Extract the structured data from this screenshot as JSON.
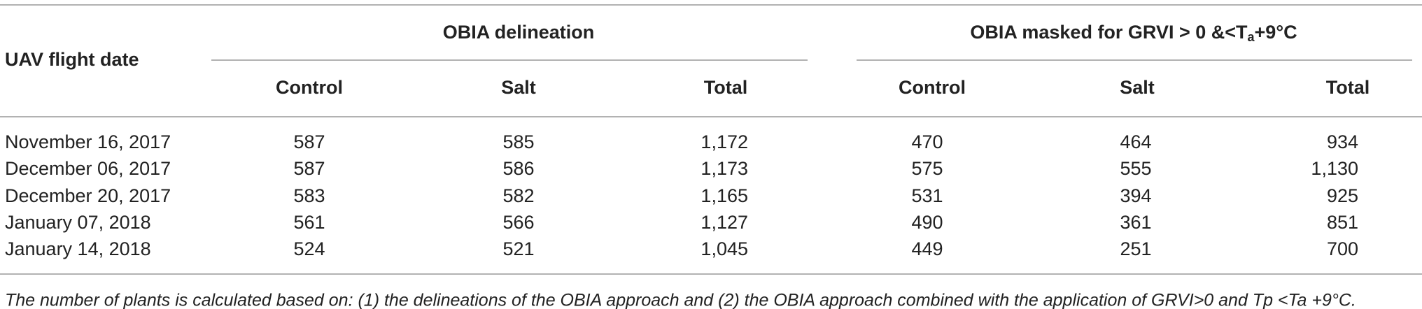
{
  "table": {
    "row_header": "UAV flight date",
    "groups": [
      {
        "title": "OBIA delineation"
      },
      {
        "title_before": "OBIA masked for GRVI > 0 &<T",
        "title_sub": "a",
        "title_after": "+9°C"
      }
    ],
    "columns": [
      "Control",
      "Salt",
      "Total",
      "Control",
      "Salt",
      "Total"
    ],
    "rows": [
      [
        "November 16, 2017",
        "587",
        "585",
        "1,172",
        "470",
        "464",
        "934"
      ],
      [
        "December 06, 2017",
        "587",
        "586",
        "1,173",
        "575",
        "555",
        "1,130"
      ],
      [
        "December 20, 2017",
        "583",
        "582",
        "1,165",
        "531",
        "394",
        "925"
      ],
      [
        "January 07, 2018",
        "561",
        "566",
        "1,127",
        "490",
        "361",
        "851"
      ],
      [
        "January 14, 2018",
        "524",
        "521",
        "1,045",
        "449",
        "251",
        "700"
      ]
    ]
  },
  "footnote": "The number of plants is calculated based on: (1) the delineations of the OBIA approach and (2) the OBIA approach combined with the application of GRVI>0 and Tp <Ta +9°C."
}
